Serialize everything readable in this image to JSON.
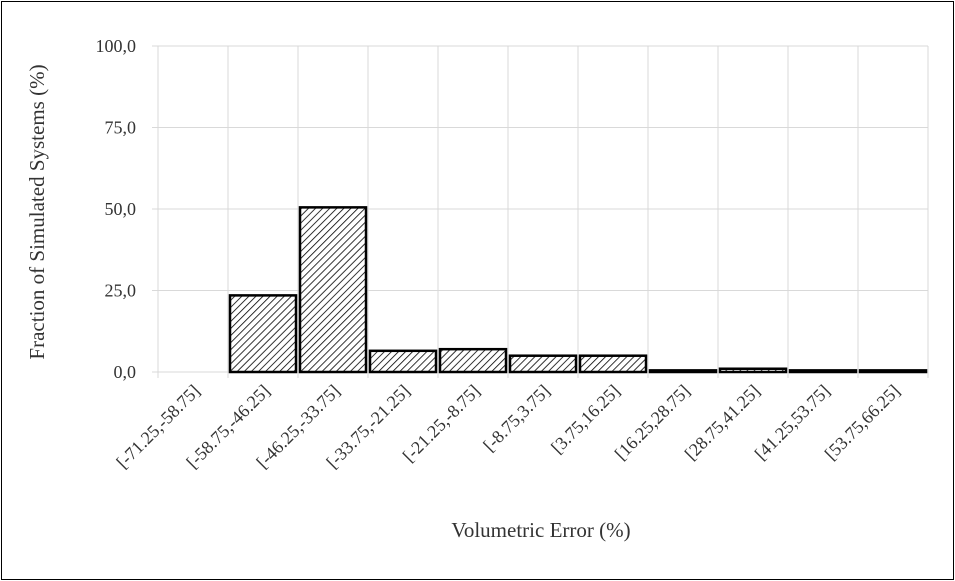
{
  "chart_data": {
    "type": "bar",
    "title": "",
    "xlabel": "Volumetric Error (%)",
    "ylabel": "Fraction of Simulated Systems (%)",
    "categories": [
      "[-71.25,-58.75]",
      "[-58.75,-46.25]",
      "[-46.25,-33.75]",
      "[-33.75,-21.25]",
      "[-21.25,-8.75]",
      "[-8.75,3.75]",
      "[3.75,16.25]",
      "[16.25,28.75]",
      "[28.75,41.25]",
      "[41.25,53.75]",
      "[53.75,66.25]"
    ],
    "values": [
      0,
      23.5,
      50.5,
      6.5,
      7.0,
      5.0,
      5.0,
      0.5,
      1.0,
      0.5,
      0.5
    ],
    "ylim": [
      0,
      100
    ],
    "yticks": [
      "0,0",
      "25,0",
      "50,0",
      "75,0",
      "100,0"
    ],
    "grid": true,
    "legend": "none",
    "bar_fill": "diagonal-hatch",
    "colors": {
      "bar_stroke": "#000000",
      "hatch": "#000000",
      "grid": "#d9d9d9",
      "axis": "#d9d9d9",
      "text": "#333333"
    }
  }
}
